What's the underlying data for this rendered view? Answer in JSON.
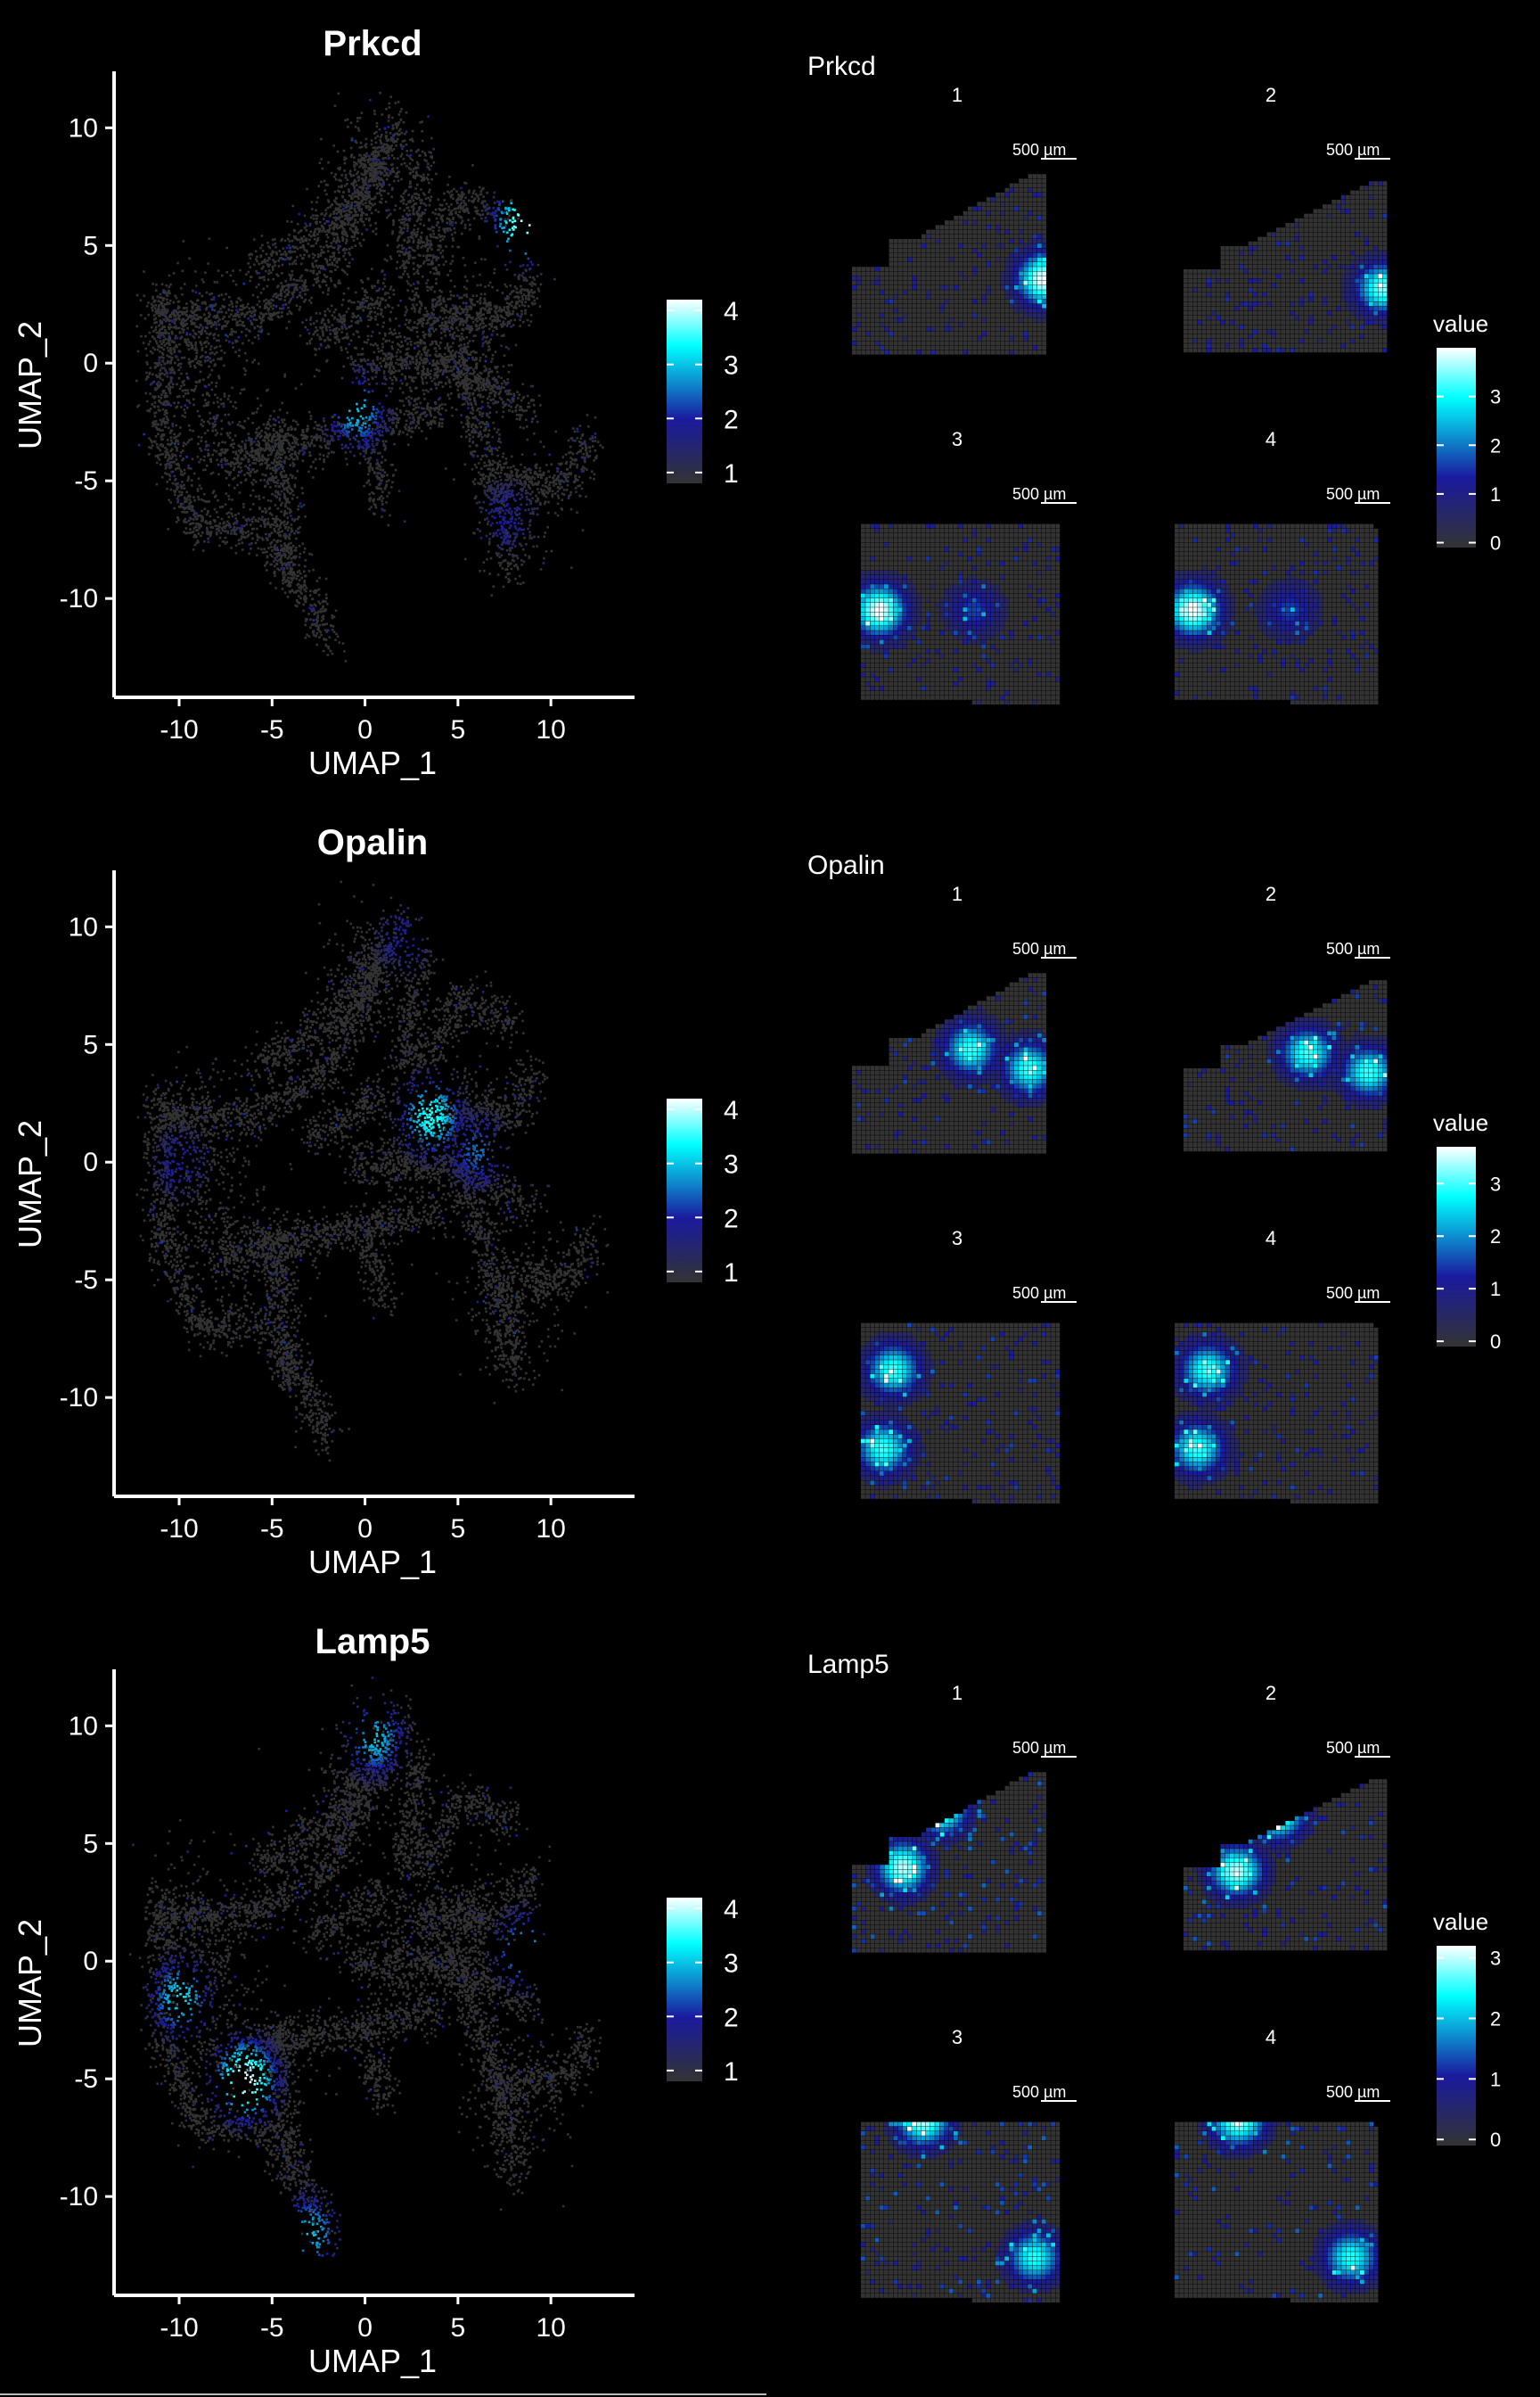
{
  "colors": {
    "background": "#000000",
    "low": "#333333",
    "mid": "#1a1a9e",
    "high": "#00ffff",
    "top": "#ffffff",
    "axis": "#ffffff"
  },
  "umap_axes": {
    "xlabel": "UMAP_1",
    "ylabel": "UMAP_2",
    "xticks": [
      -10,
      -5,
      0,
      5,
      10
    ],
    "yticks": [
      10,
      5,
      0,
      -5,
      -10
    ],
    "xlim": [
      -13.5,
      14.5
    ],
    "ylim": [
      -14.2,
      12.4
    ]
  },
  "spatial": {
    "legend_title": "value",
    "scale_bar": "500 µm",
    "sections": [
      "1",
      "2",
      "3",
      "4"
    ]
  },
  "chart_data": [
    {
      "type": "scatter",
      "title": "Prkcd",
      "xlabel": "UMAP_1",
      "ylabel": "UMAP_2",
      "xlim": [
        -13.5,
        14.5
      ],
      "ylim": [
        -14.2,
        12.4
      ],
      "legend": {
        "ticks": [
          4,
          3,
          2,
          1
        ],
        "range": [
          0.8,
          4.2
        ],
        "placement": "right"
      },
      "hotspots": [
        {
          "x": 8.5,
          "y": 6.0,
          "value": 4.0
        },
        {
          "x": -0.5,
          "y": -2.0,
          "value": 3.0
        },
        {
          "x": 7.5,
          "y": -6.5,
          "value": 2.0
        }
      ],
      "spatial": {
        "title": "Prkcd",
        "legend_ticks": [
          3,
          2,
          1,
          0
        ],
        "legend_range": [
          -0.1,
          4.0
        ],
        "panels": [
          {
            "label": "1",
            "hotspots": [
              {
                "u": 0.97,
                "v": 0.55,
                "value": 4.0
              }
            ]
          },
          {
            "label": "2",
            "hotspots": [
              {
                "u": 0.97,
                "v": 0.58,
                "value": 3.5
              }
            ]
          },
          {
            "label": "3",
            "hotspots": [
              {
                "u": 0.08,
                "v": 0.5,
                "value": 4.0
              },
              {
                "u": 0.55,
                "v": 0.5,
                "value": 1.5
              }
            ]
          },
          {
            "label": "4",
            "hotspots": [
              {
                "u": 0.08,
                "v": 0.5,
                "value": 4.0
              },
              {
                "u": 0.55,
                "v": 0.5,
                "value": 1.5
              }
            ]
          }
        ]
      }
    },
    {
      "type": "scatter",
      "title": "Opalin",
      "xlabel": "UMAP_1",
      "ylabel": "UMAP_2",
      "xlim": [
        -13.5,
        14.5
      ],
      "ylim": [
        -14.2,
        12.4
      ],
      "legend": {
        "ticks": [
          4,
          3,
          2,
          1
        ],
        "range": [
          0.8,
          4.2
        ],
        "placement": "right"
      },
      "hotspots": [
        {
          "x": 3.5,
          "y": 2.0,
          "value": 3.5
        },
        {
          "x": 6.0,
          "y": 0.5,
          "value": 2.5
        },
        {
          "x": -10.0,
          "y": 0.0,
          "value": 2.0
        },
        {
          "x": 2.0,
          "y": 9.5,
          "value": 2.0
        }
      ],
      "spatial": {
        "title": "Opalin",
        "legend_ticks": [
          3,
          2,
          1,
          0
        ],
        "legend_range": [
          -0.1,
          3.7
        ],
        "panels": [
          {
            "label": "1",
            "hotspots": [
              {
                "u": 0.6,
                "v": 0.4,
                "value": 3.0
              },
              {
                "u": 0.9,
                "v": 0.5,
                "value": 3.0
              }
            ]
          },
          {
            "label": "2",
            "hotspots": [
              {
                "u": 0.6,
                "v": 0.4,
                "value": 3.0
              },
              {
                "u": 0.9,
                "v": 0.5,
                "value": 3.0
              }
            ]
          },
          {
            "label": "3",
            "hotspots": [
              {
                "u": 0.15,
                "v": 0.3,
                "value": 3.0
              },
              {
                "u": 0.1,
                "v": 0.7,
                "value": 3.0
              }
            ]
          },
          {
            "label": "4",
            "hotspots": [
              {
                "u": 0.15,
                "v": 0.3,
                "value": 3.0
              },
              {
                "u": 0.1,
                "v": 0.7,
                "value": 3.0
              }
            ]
          }
        ]
      }
    },
    {
      "type": "scatter",
      "title": "Lamp5",
      "xlabel": "UMAP_1",
      "ylabel": "UMAP_2",
      "xlim": [
        -13.5,
        14.5
      ],
      "ylim": [
        -14.2,
        12.4
      ],
      "legend": {
        "ticks": [
          4,
          3,
          2,
          1
        ],
        "range": [
          0.8,
          4.2
        ],
        "placement": "right"
      },
      "hotspots": [
        {
          "x": -6.5,
          "y": -5.0,
          "value": 4.2
        },
        {
          "x": -10.0,
          "y": -1.5,
          "value": 3.2
        },
        {
          "x": 0.5,
          "y": 9.5,
          "value": 3.0
        },
        {
          "x": 8.5,
          "y": 0.5,
          "value": 3.0
        },
        {
          "x": -3.0,
          "y": -11.5,
          "value": 3.0
        }
      ],
      "spatial": {
        "title": "Lamp5",
        "legend_ticks": [
          3,
          2,
          1,
          0
        ],
        "legend_range": [
          -0.1,
          3.2
        ],
        "panels": [
          {
            "label": "1",
            "hotspots": [
              {
                "u": 0.45,
                "v": 0.2,
                "value": 3.0
              },
              {
                "u": 0.25,
                "v": 0.5,
                "value": 3.0
              }
            ]
          },
          {
            "label": "2",
            "hotspots": [
              {
                "u": 0.45,
                "v": 0.2,
                "value": 3.0
              },
              {
                "u": 0.25,
                "v": 0.5,
                "value": 3.0
              }
            ]
          },
          {
            "label": "3",
            "hotspots": [
              {
                "u": 0.3,
                "v": 0.05,
                "value": 3.0
              },
              {
                "u": 0.85,
                "v": 0.75,
                "value": 2.5
              }
            ]
          },
          {
            "label": "4",
            "hotspots": [
              {
                "u": 0.3,
                "v": 0.05,
                "value": 3.0
              },
              {
                "u": 0.85,
                "v": 0.75,
                "value": 2.5
              }
            ]
          }
        ]
      }
    }
  ]
}
